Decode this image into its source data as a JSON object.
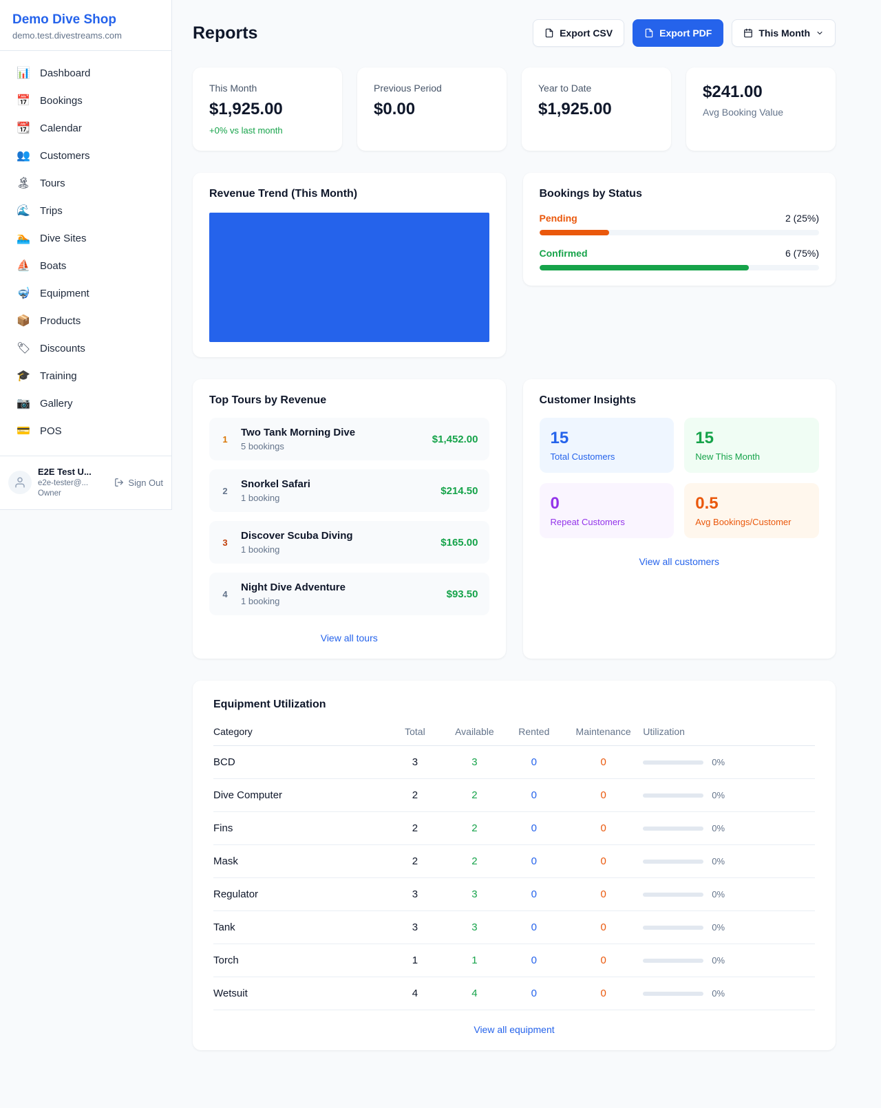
{
  "colors": {
    "primary": "#2563eb",
    "green": "#16a34a",
    "orange": "#ea580c",
    "purple": "#9333ea",
    "amber": "#d97706"
  },
  "sidebar": {
    "brand": "Demo Dive Shop",
    "domain": "demo.test.divestreams.com",
    "items": [
      {
        "label": "Dashboard",
        "icon": "📊"
      },
      {
        "label": "Bookings",
        "icon": "📅"
      },
      {
        "label": "Calendar",
        "icon": "📆"
      },
      {
        "label": "Customers",
        "icon": "👥"
      },
      {
        "label": "Tours",
        "icon": "🏝"
      },
      {
        "label": "Trips",
        "icon": "🌊"
      },
      {
        "label": "Dive Sites",
        "icon": "🏊"
      },
      {
        "label": "Boats",
        "icon": "⛵"
      },
      {
        "label": "Equipment",
        "icon": "🤿"
      },
      {
        "label": "Products",
        "icon": "📦"
      },
      {
        "label": "Discounts",
        "icon": "🏷"
      },
      {
        "label": "Training",
        "icon": "🎓"
      },
      {
        "label": "Gallery",
        "icon": "📷"
      },
      {
        "label": "POS",
        "icon": "💳"
      }
    ],
    "user": {
      "name": "E2E Test U...",
      "email": "e2e-tester@...",
      "role": "Owner",
      "sign_out": "Sign Out"
    }
  },
  "header": {
    "title": "Reports",
    "export_csv": "Export CSV",
    "export_pdf": "Export PDF",
    "period": "This Month"
  },
  "stats": [
    {
      "label": "This Month",
      "value": "$1,925.00",
      "delta": "+0% vs last month"
    },
    {
      "label": "Previous Period",
      "value": "$0.00"
    },
    {
      "label": "Year to Date",
      "value": "$1,925.00"
    },
    {
      "value": "$241.00",
      "label": "Avg Booking Value"
    }
  ],
  "revenue_trend": {
    "title": "Revenue Trend (This Month)",
    "bar_color": "#2563eb",
    "bar_pct": 100
  },
  "bookings_status": {
    "title": "Bookings by Status",
    "items": [
      {
        "label": "Pending",
        "count": "2 (25%)",
        "pct": 25,
        "color": "#ea580c"
      },
      {
        "label": "Confirmed",
        "count": "6 (75%)",
        "pct": 75,
        "color": "#16a34a"
      }
    ]
  },
  "top_tours": {
    "title": "Top Tours by Revenue",
    "items": [
      {
        "rank": "1",
        "name": "Two Tank Morning Dive",
        "bookings": "5 bookings",
        "amount": "$1,452.00"
      },
      {
        "rank": "2",
        "name": "Snorkel Safari",
        "bookings": "1 booking",
        "amount": "$214.50"
      },
      {
        "rank": "3",
        "name": "Discover Scuba Diving",
        "bookings": "1 booking",
        "amount": "$165.00"
      },
      {
        "rank": "4",
        "name": "Night Dive Adventure",
        "bookings": "1 booking",
        "amount": "$93.50"
      }
    ],
    "view_all": "View all tours"
  },
  "customer_insights": {
    "title": "Customer Insights",
    "tiles": [
      {
        "value": "15",
        "label": "Total Customers"
      },
      {
        "value": "15",
        "label": "New This Month"
      },
      {
        "value": "0",
        "label": "Repeat Customers"
      },
      {
        "value": "0.5",
        "label": "Avg Bookings/Customer"
      }
    ],
    "view_all": "View all customers"
  },
  "equipment": {
    "title": "Equipment Utilization",
    "columns": [
      "Category",
      "Total",
      "Available",
      "Rented",
      "Maintenance",
      "Utilization"
    ],
    "rows": [
      {
        "category": "BCD",
        "total": "3",
        "available": "3",
        "rented": "0",
        "maintenance": "0",
        "utilization": "0%",
        "pct": 0
      },
      {
        "category": "Dive Computer",
        "total": "2",
        "available": "2",
        "rented": "0",
        "maintenance": "0",
        "utilization": "0%",
        "pct": 0
      },
      {
        "category": "Fins",
        "total": "2",
        "available": "2",
        "rented": "0",
        "maintenance": "0",
        "utilization": "0%",
        "pct": 0
      },
      {
        "category": "Mask",
        "total": "2",
        "available": "2",
        "rented": "0",
        "maintenance": "0",
        "utilization": "0%",
        "pct": 0
      },
      {
        "category": "Regulator",
        "total": "3",
        "available": "3",
        "rented": "0",
        "maintenance": "0",
        "utilization": "0%",
        "pct": 0
      },
      {
        "category": "Tank",
        "total": "3",
        "available": "3",
        "rented": "0",
        "maintenance": "0",
        "utilization": "0%",
        "pct": 0
      },
      {
        "category": "Torch",
        "total": "1",
        "available": "1",
        "rented": "0",
        "maintenance": "0",
        "utilization": "0%",
        "pct": 0
      },
      {
        "category": "Wetsuit",
        "total": "4",
        "available": "4",
        "rented": "0",
        "maintenance": "0",
        "utilization": "0%",
        "pct": 0
      }
    ],
    "view_all": "View all equipment"
  }
}
